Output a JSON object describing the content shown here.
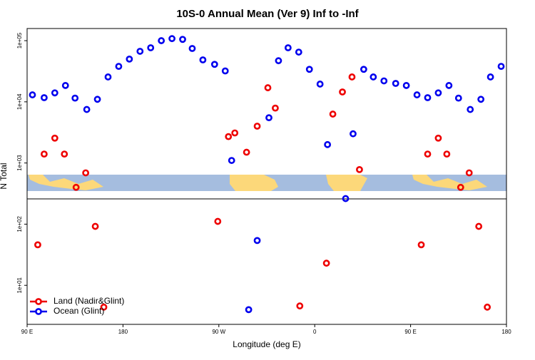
{
  "chart_data": {
    "type": "scatter",
    "title": "10S-0 Annual Mean (Ver 9)   Inf to -Inf",
    "x_label": "Longitude (deg E)",
    "y_label": "N Total",
    "log_y": true,
    "xlim": [
      90,
      540
    ],
    "xticks": [
      {
        "value": 90,
        "label": "90 E"
      },
      180,
      {
        "value": 270,
        "label": "90 W"
      },
      {
        "value": 360,
        "label": "0"
      },
      {
        "value": 450,
        "label": "90 E"
      },
      {
        "value": 540,
        "label": "180"
      }
    ],
    "ylim": [
      2.3,
      158000
    ],
    "yticks": [
      {
        "value": 10,
        "label": "1e+01"
      },
      {
        "value": 100,
        "label": "1e+02"
      },
      {
        "value": 1000,
        "label": "1e+03"
      },
      {
        "value": 10000,
        "label": "1e+04"
      },
      {
        "value": 100000,
        "label": "1e+05"
      }
    ],
    "legend": "bottom-left",
    "series": [
      {
        "name": "Land (Nadir&Glint)",
        "color": "#ee0000",
        "x": [
          100,
          106,
          116,
          125,
          136,
          145,
          154,
          162,
          269,
          279,
          285,
          296,
          306,
          316,
          323,
          346,
          371,
          377,
          386,
          395,
          402,
          460,
          466,
          476,
          484,
          497,
          505,
          514,
          522
        ],
        "values": [
          46,
          1400,
          2550,
          1400,
          400,
          690,
          92,
          4.4,
          111,
          2700,
          3100,
          1500,
          4000,
          17000,
          7900,
          4.6,
          23,
          6300,
          14500,
          25500,
          780,
          46,
          1400,
          2550,
          1400,
          400,
          690,
          92,
          4.4
        ]
      },
      {
        "name": "Ocean (Glint)",
        "color": "#0000ee",
        "x": [
          95,
          106,
          116,
          126,
          135,
          146,
          156,
          166,
          176,
          186,
          196,
          206,
          216,
          226,
          236,
          245,
          255,
          266,
          276,
          282,
          298,
          306,
          317,
          326,
          335,
          345,
          355,
          365,
          372,
          389,
          396,
          406,
          415,
          425,
          436,
          446,
          456,
          466,
          476,
          486,
          495,
          506,
          516,
          525,
          535
        ],
        "values": [
          13000,
          11700,
          14000,
          18500,
          11500,
          7500,
          11000,
          25500,
          38000,
          50000,
          67000,
          76500,
          100000,
          108000,
          105000,
          74500,
          48500,
          41000,
          32000,
          1100,
          4.0,
          54,
          5500,
          47000,
          76500,
          65000,
          34000,
          19500,
          2000,
          262,
          3000,
          34000,
          25500,
          22000,
          20000,
          18500,
          13000,
          11700,
          14000,
          18500,
          11500,
          7500,
          11000,
          25500,
          38000
        ]
      }
    ]
  }
}
